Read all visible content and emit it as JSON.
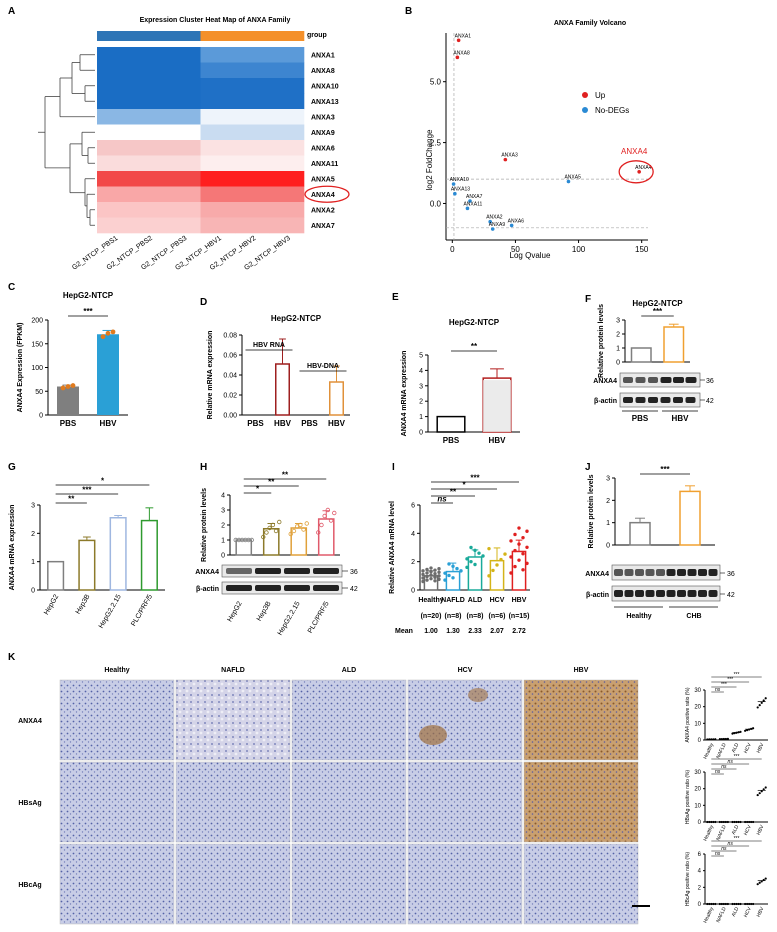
{
  "panels": {
    "A": {
      "label": "A",
      "title": "Expression Cluster Heat Map of ANXA Family",
      "group_label": "group",
      "group_colors": [
        "#2e75b6",
        "#2e75b6",
        "#2e75b6",
        "#f4902a",
        "#f4902a",
        "#f4902a"
      ],
      "rows": [
        "ANXA1",
        "ANXA8",
        "ANXA10",
        "ANXA13",
        "ANXA3",
        "ANXA9",
        "ANXA6",
        "ANXA11",
        "ANXA5",
        "ANXA4",
        "ANXA2",
        "ANXA7"
      ],
      "columns": [
        "G2_NTCP_PBS1",
        "G2_NTCP_PBS2",
        "G2_NTCP_PBS3",
        "G2_NTCP_HBV1",
        "G2_NTCP_HBV2",
        "G2_NTCP_HBV3"
      ],
      "colors": [
        [
          "#1a6dc4",
          "#1a6dc4",
          "#1a6dc4",
          "#5b9ad9",
          "#5b9ad9",
          "#5b9ad9"
        ],
        [
          "#1a6dc4",
          "#1a6dc4",
          "#1a6dc4",
          "#3d85d0",
          "#3d85d0",
          "#3d85d0"
        ],
        [
          "#1a6dc4",
          "#1a6dc4",
          "#1a6dc4",
          "#1f70c6",
          "#1f70c6",
          "#1f70c6"
        ],
        [
          "#1a6dc4",
          "#1a6dc4",
          "#1a6dc4",
          "#1f70c6",
          "#1f70c6",
          "#1f70c6"
        ],
        [
          "#8ab7e4",
          "#8ab7e4",
          "#8ab7e4",
          "#eef4fb",
          "#eef4fb",
          "#eef4fb"
        ],
        [
          "#ffffff",
          "#ffffff",
          "#ffffff",
          "#c9dcf1",
          "#c9dcf1",
          "#c9dcf1"
        ],
        [
          "#f6c7c7",
          "#f6c7c7",
          "#f6c7c7",
          "#fbe2e2",
          "#fbe2e2",
          "#fbe2e2"
        ],
        [
          "#fadcdc",
          "#fadcdc",
          "#fadcdc",
          "#fdeeee",
          "#fdeeee",
          "#fdeeee"
        ],
        [
          "#f24848",
          "#f24848",
          "#f24848",
          "#ff1f1f",
          "#ff1f1f",
          "#ff1f1f"
        ],
        [
          "#f9a7a7",
          "#f9a7a7",
          "#f9a7a7",
          "#f57777",
          "#f57777",
          "#f57777"
        ],
        [
          "#fbc5c5",
          "#fbc5c5",
          "#fbc5c5",
          "#f8aaaa",
          "#f8aaaa",
          "#f8aaaa"
        ],
        [
          "#fbd0d0",
          "#fbd0d0",
          "#fbd0d0",
          "#f8b5b5",
          "#f8b5b5",
          "#f8b5b5"
        ]
      ],
      "highlight": "ANXA4"
    },
    "B": {
      "label": "B",
      "title": "ANXA Family Volcano",
      "xlabel": "Log Qvalue",
      "ylabel": "log2 FoldChange",
      "xlim": [
        -5,
        155
      ],
      "ylim": [
        -1.5,
        7
      ],
      "xticks": [
        0,
        50,
        100,
        150
      ],
      "yticks": [
        0.0,
        2.5,
        5.0
      ],
      "ytick_labels": [
        "0.0",
        "2.5",
        "5.0"
      ],
      "hlines": [
        1,
        -1
      ],
      "vline": 1.3,
      "legend": [
        {
          "name": "Up",
          "color": "#e02020"
        },
        {
          "name": "No-DEGs",
          "color": "#2a8ad4"
        }
      ],
      "highlight": "ANXA4",
      "points": [
        {
          "name": "ANXA1",
          "x": 5,
          "y": 6.7,
          "up": true
        },
        {
          "name": "ANXA8",
          "x": 4,
          "y": 6.0,
          "up": true
        },
        {
          "name": "ANXA3",
          "x": 42,
          "y": 1.8,
          "up": true
        },
        {
          "name": "ANXA4",
          "x": 148,
          "y": 1.3,
          "up": true
        },
        {
          "name": "ANXA5",
          "x": 92,
          "y": 0.9,
          "up": false
        },
        {
          "name": "ANXA10",
          "x": 1,
          "y": 0.8,
          "up": false
        },
        {
          "name": "ANXA13",
          "x": 2,
          "y": 0.4,
          "up": false
        },
        {
          "name": "ANXA7",
          "x": 14,
          "y": 0.1,
          "up": false
        },
        {
          "name": "ANXA11",
          "x": 12,
          "y": -0.2,
          "up": false
        },
        {
          "name": "ANXA2",
          "x": 30,
          "y": -0.75,
          "up": false
        },
        {
          "name": "ANXA6",
          "x": 47,
          "y": -0.9,
          "up": false
        },
        {
          "name": "ANXA9",
          "x": 32,
          "y": -1.05,
          "up": false
        }
      ]
    },
    "C": {
      "label": "C",
      "title": "HepG2-NTCP",
      "ylabel": "ANXA4 Expression (FPKM)",
      "categories": [
        "PBS",
        "HBV"
      ],
      "values": [
        60,
        170
      ],
      "errors": [
        3,
        8
      ],
      "colors": [
        "#7f7f7f",
        "#2aa0d6"
      ],
      "dot_color": "#e07b1e",
      "points": [
        [
          57,
          60,
          62
        ],
        [
          165,
          172,
          175
        ]
      ],
      "ylim": [
        0,
        200
      ],
      "yticks": [
        0,
        50,
        100,
        150,
        200
      ],
      "sig": "***"
    },
    "D": {
      "label": "D",
      "title": "HepG2-NTCP",
      "ylabel": "Relative mRNA expression",
      "categories": [
        "PBS",
        "HBV",
        "PBS",
        "HBV"
      ],
      "values": [
        0,
        0.051,
        0,
        0.033
      ],
      "errors": [
        0,
        0.025,
        0,
        0.016
      ],
      "colors": [
        "#9e1f1f",
        "#9e1f1f",
        "#e0913a",
        "#e0913a"
      ],
      "groups": [
        "HBV RNA",
        "HBV-DNA"
      ],
      "ylim": [
        0,
        0.08
      ],
      "yticks": [
        0.0,
        0.02,
        0.04,
        0.06,
        0.08
      ],
      "ytick_labels": [
        "0.00",
        "0.02",
        "0.04",
        "0.06",
        "0.08"
      ]
    },
    "E": {
      "label": "E",
      "title": "HepG2-NTCP",
      "ylabel": "ANXA4 mRNA expression",
      "categories": [
        "PBS",
        "HBV"
      ],
      "values": [
        1,
        3.5
      ],
      "errors": [
        0,
        0.6
      ],
      "colors": [
        "#000000",
        "#b31e1e"
      ],
      "ylim": [
        0,
        5
      ],
      "yticks": [
        0,
        1,
        2,
        3,
        4,
        5
      ],
      "sig": "**"
    },
    "F": {
      "label": "F",
      "title": "HepG2-NTCP",
      "ylabel": "Relative protein levels",
      "categories": [
        "PBS",
        "HBV"
      ],
      "values": [
        1,
        2.5
      ],
      "errors": [
        0,
        0.2
      ],
      "colors": [
        "#7f7f7f",
        "#f0a030"
      ],
      "ylim": [
        0,
        3
      ],
      "yticks": [
        0,
        1,
        2,
        3
      ],
      "sig": "***",
      "blot_rows": [
        {
          "name": "ANXA4",
          "kda": "36"
        },
        {
          "name": "β-actin",
          "kda": "42"
        }
      ],
      "blot_group_labels": [
        "PBS",
        "HBV"
      ]
    },
    "G": {
      "label": "G",
      "ylabel": "ANXA4 mRNA expression",
      "categories": [
        "HepG2",
        "Hep3B",
        "HepG2.2.15",
        "PLC/PRF/5"
      ],
      "values": [
        1,
        1.75,
        2.55,
        2.45
      ],
      "errors": [
        0,
        0.12,
        0.08,
        0.45
      ],
      "colors": [
        "#7f7f7f",
        "#8c7a2a",
        "#9fb7e0",
        "#2e9a2e"
      ],
      "ylim": [
        0,
        3
      ],
      "yticks": [
        0,
        1,
        2,
        3
      ],
      "sigs": [
        {
          "from": 0,
          "to": 1,
          "label": "**"
        },
        {
          "from": 0,
          "to": 2,
          "label": "***"
        },
        {
          "from": 0,
          "to": 3,
          "label": "*"
        }
      ]
    },
    "H": {
      "label": "H",
      "ylabel": "Relative protein levels",
      "categories": [
        "HepG2",
        "Hep3B",
        "HepG2.2.15",
        "PLC/PRF/5"
      ],
      "values": [
        1,
        1.75,
        1.8,
        2.4
      ],
      "errors": [
        0,
        0.35,
        0.3,
        0.55
      ],
      "colors": [
        "#7f7f7f",
        "#8c7a2a",
        "#e0a13a",
        "#e05a6a"
      ],
      "ylim": [
        0,
        4
      ],
      "yticks": [
        0,
        1,
        2,
        3,
        4
      ],
      "sigs": [
        {
          "from": 0,
          "to": 1,
          "label": "*"
        },
        {
          "from": 0,
          "to": 2,
          "label": "**"
        },
        {
          "from": 0,
          "to": 3,
          "label": "**"
        }
      ],
      "blot_rows": [
        {
          "name": "ANXA4",
          "kda": "36"
        },
        {
          "name": "β-actin",
          "kda": "42"
        }
      ]
    },
    "I": {
      "label": "I",
      "ylabel": "Relative ANXA4 mRNA level",
      "categories": [
        "Healthy",
        "NAFLD",
        "ALD",
        "HCV",
        "HBV"
      ],
      "values": [
        1.0,
        1.3,
        2.33,
        2.07,
        2.72
      ],
      "errors": [
        0.35,
        0.6,
        0.5,
        0.9,
        0.8
      ],
      "colors": [
        "#6c6c6c",
        "#2aa0d6",
        "#1aaa9a",
        "#d4b419",
        "#e02020"
      ],
      "ylim": [
        0,
        6
      ],
      "yticks": [
        0,
        2,
        4,
        6
      ],
      "sigs": [
        {
          "from": 0,
          "to": 1,
          "label": "ns"
        },
        {
          "from": 0,
          "to": 2,
          "label": "**"
        },
        {
          "from": 0,
          "to": 3,
          "label": "*"
        },
        {
          "from": 0,
          "to": 4,
          "label": "***"
        }
      ],
      "n_labels": [
        "(n=20)",
        "(n=8)",
        "(n=8)",
        "(n=6)",
        "(n=15)"
      ],
      "mean_label": "Mean",
      "mean_values": [
        "1.00",
        "1.30",
        "2.33",
        "2.07",
        "2.72"
      ]
    },
    "J": {
      "label": "J",
      "ylabel": "Relative protein levels",
      "categories": [
        "Healthy",
        "CHB"
      ],
      "values": [
        1,
        2.4
      ],
      "errors": [
        0.2,
        0.25
      ],
      "colors": [
        "#7f7f7f",
        "#f0a030"
      ],
      "ylim": [
        0,
        3
      ],
      "yticks": [
        0,
        1,
        2,
        3
      ],
      "sig": "***",
      "blot_rows": [
        {
          "name": "ANXA4",
          "kda": "36"
        },
        {
          "name": "β-actin",
          "kda": "42"
        }
      ],
      "blot_group_labels": [
        "Healthy",
        "CHB"
      ]
    },
    "K": {
      "label": "K",
      "columns": [
        "Healthy",
        "NAFLD",
        "ALD",
        "HCV",
        "HBV"
      ],
      "rows": [
        "ANXA4",
        "HBsAg",
        "HBcAg"
      ],
      "plots": [
        {
          "ylabel": "ANXA4 positive ratio (%)",
          "ylim": [
            0,
            30
          ],
          "yticks": [
            0,
            10,
            20,
            30
          ],
          "values": [
            0.4,
            0.6,
            4.5,
            6.5,
            23
          ],
          "sigs": [
            {
              "from": 0,
              "to": 1,
              "label": "ns"
            },
            {
              "from": 0,
              "to": 2,
              "label": "***"
            },
            {
              "from": 0,
              "to": 3,
              "label": "***"
            },
            {
              "from": 0,
              "to": 4,
              "label": "***"
            }
          ]
        },
        {
          "ylabel": "HBsAg positive ratio (%)",
          "ylim": [
            0,
            30
          ],
          "yticks": [
            0,
            10,
            20,
            30
          ],
          "values": [
            0,
            0,
            0,
            0,
            19
          ],
          "sigs": [
            {
              "from": 0,
              "to": 1,
              "label": "ns"
            },
            {
              "from": 0,
              "to": 2,
              "label": "ns"
            },
            {
              "from": 0,
              "to": 3,
              "label": "ns"
            },
            {
              "from": 0,
              "to": 4,
              "label": "***"
            }
          ]
        },
        {
          "ylabel": "HBcAg positive ratio (%)",
          "ylim": [
            0,
            6
          ],
          "yticks": [
            0,
            2,
            4,
            6
          ],
          "values": [
            0,
            0,
            0,
            0,
            2.8
          ],
          "sigs": [
            {
              "from": 0,
              "to": 1,
              "label": "ns"
            },
            {
              "from": 0,
              "to": 2,
              "label": "ns"
            },
            {
              "from": 0,
              "to": 3,
              "label": "ns"
            },
            {
              "from": 0,
              "to": 4,
              "label": "***"
            }
          ]
        }
      ],
      "xlabels": [
        "Healthy",
        "NAFLD",
        "ALD",
        "HCV",
        "HBV"
      ]
    }
  },
  "chart_data": [
    {
      "type": "heatmap",
      "title": "Expression Cluster Heat Map of ANXA Family",
      "rows": [
        "ANXA1",
        "ANXA8",
        "ANXA10",
        "ANXA13",
        "ANXA3",
        "ANXA9",
        "ANXA6",
        "ANXA11",
        "ANXA5",
        "ANXA4",
        "ANXA2",
        "ANXA7"
      ],
      "columns": [
        "G2_NTCP_PBS1",
        "G2_NTCP_PBS2",
        "G2_NTCP_PBS3",
        "G2_NTCP_HBV1",
        "G2_NTCP_HBV2",
        "G2_NTCP_HBV3"
      ]
    },
    {
      "type": "scatter",
      "title": "ANXA Family Volcano",
      "xlabel": "Log Qvalue",
      "ylabel": "log2 FoldChange",
      "xlim": [
        -5,
        155
      ],
      "ylim": [
        -1.5,
        7
      ]
    },
    {
      "type": "bar",
      "title": "HepG2-NTCP",
      "categories": [
        "PBS",
        "HBV"
      ],
      "values": [
        60,
        170
      ],
      "ylabel": "ANXA4 Expression (FPKM)",
      "ylim": [
        0,
        200
      ]
    },
    {
      "type": "bar",
      "title": "HepG2-NTCP",
      "categories": [
        "PBS",
        "HBV",
        "PBS",
        "HBV"
      ],
      "values": [
        0,
        0.051,
        0,
        0.033
      ],
      "ylabel": "Relative mRNA expression",
      "ylim": [
        0,
        0.08
      ]
    },
    {
      "type": "bar",
      "title": "HepG2-NTCP",
      "categories": [
        "PBS",
        "HBV"
      ],
      "values": [
        1,
        3.5
      ],
      "ylabel": "ANXA4 mRNA expression",
      "ylim": [
        0,
        5
      ]
    },
    {
      "type": "bar",
      "title": "HepG2-NTCP",
      "categories": [
        "PBS",
        "HBV"
      ],
      "values": [
        1,
        2.5
      ],
      "ylabel": "Relative protein levels",
      "ylim": [
        0,
        3
      ]
    },
    {
      "type": "bar",
      "categories": [
        "HepG2",
        "Hep3B",
        "HepG2.2.15",
        "PLC/PRF/5"
      ],
      "values": [
        1,
        1.75,
        2.55,
        2.45
      ],
      "ylabel": "ANXA4 mRNA expression",
      "ylim": [
        0,
        3
      ]
    },
    {
      "type": "bar",
      "categories": [
        "HepG2",
        "Hep3B",
        "HepG2.2.15",
        "PLC/PRF/5"
      ],
      "values": [
        1,
        1.75,
        1.8,
        2.4
      ],
      "ylabel": "Relative protein levels",
      "ylim": [
        0,
        4
      ]
    },
    {
      "type": "bar",
      "categories": [
        "Healthy",
        "NAFLD",
        "ALD",
        "HCV",
        "HBV"
      ],
      "values": [
        1.0,
        1.3,
        2.33,
        2.07,
        2.72
      ],
      "ylabel": "Relative ANXA4 mRNA level",
      "ylim": [
        0,
        6
      ]
    },
    {
      "type": "bar",
      "categories": [
        "Healthy",
        "CHB"
      ],
      "values": [
        1,
        2.4
      ],
      "ylabel": "Relative protein levels",
      "ylim": [
        0,
        3
      ]
    },
    {
      "type": "scatter",
      "ylabel": "ANXA4 positive ratio (%)",
      "categories": [
        "Healthy",
        "NAFLD",
        "ALD",
        "HCV",
        "HBV"
      ],
      "values": [
        0.4,
        0.6,
        4.5,
        6.5,
        23
      ],
      "ylim": [
        0,
        30
      ]
    },
    {
      "type": "scatter",
      "ylabel": "HBsAg positive ratio (%)",
      "categories": [
        "Healthy",
        "NAFLD",
        "ALD",
        "HCV",
        "HBV"
      ],
      "values": [
        0,
        0,
        0,
        0,
        19
      ],
      "ylim": [
        0,
        30
      ]
    },
    {
      "type": "scatter",
      "ylabel": "HBcAg positive ratio (%)",
      "categories": [
        "Healthy",
        "NAFLD",
        "ALD",
        "HCV",
        "HBV"
      ],
      "values": [
        0,
        0,
        0,
        0,
        2.8
      ],
      "ylim": [
        0,
        6
      ]
    }
  ]
}
